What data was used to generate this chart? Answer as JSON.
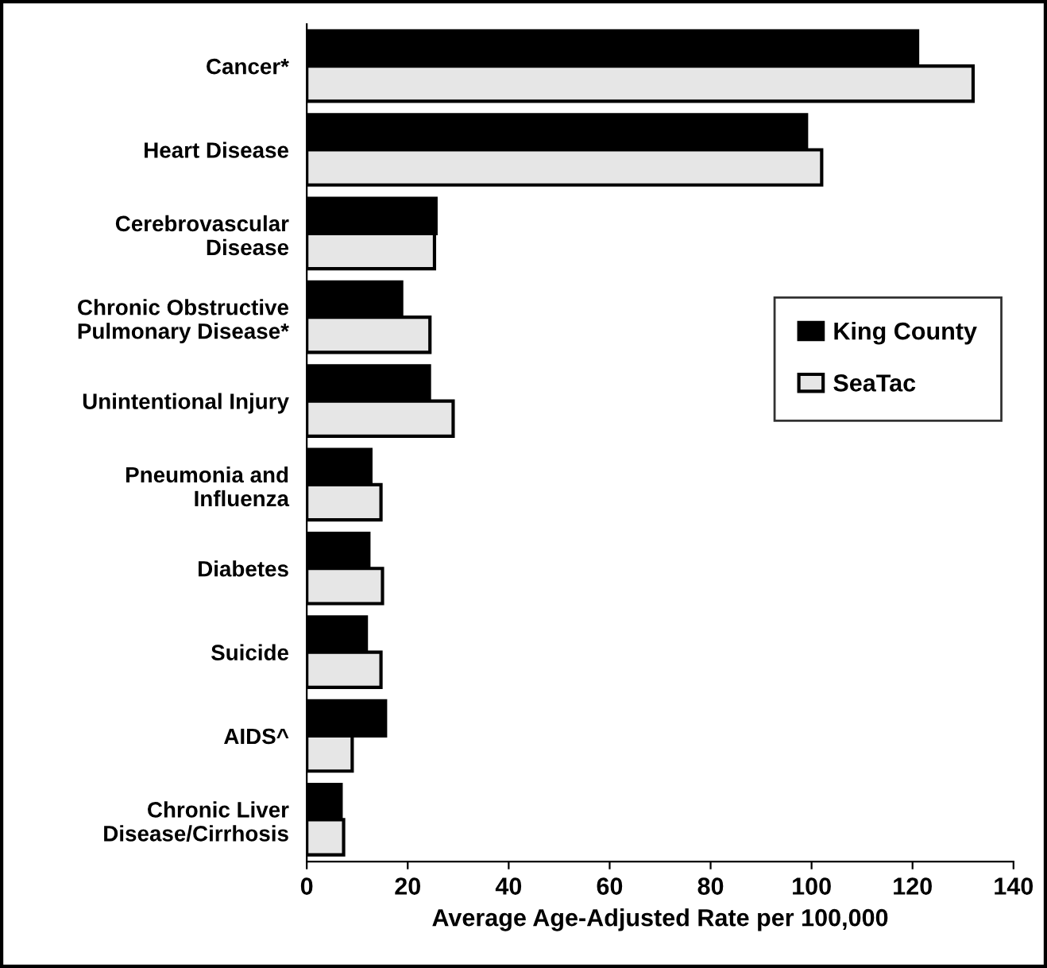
{
  "chart_data": {
    "type": "bar",
    "orientation": "horizontal",
    "xlabel": "Average Age-Adjusted Rate per 100,000",
    "categories": [
      "Cancer*",
      "Heart Disease",
      "Cerebrovascular\nDisease",
      "Chronic Obstructive\nPulmonary Disease*",
      "Unintentional Injury",
      "Pneumonia and\nInfluenza",
      "Diabetes",
      "Suicide",
      "AIDS^",
      "Chronic Liver\nDisease/Cirrhosis"
    ],
    "series": [
      {
        "name": "King County",
        "color": "#000000",
        "values": [
          121,
          99,
          25.6,
          18.8,
          24.3,
          12.7,
          12.3,
          11.8,
          15.6,
          6.8
        ]
      },
      {
        "name": "SeaTac",
        "color": "#e6e6e6",
        "values": [
          132,
          102,
          25.3,
          24.4,
          29,
          14.7,
          15,
          14.7,
          9,
          7.3
        ]
      }
    ],
    "xlim": [
      0,
      140
    ],
    "xticks": [
      0,
      20,
      40,
      60,
      80,
      100,
      120,
      140
    ],
    "grid": false,
    "legend": "right"
  }
}
